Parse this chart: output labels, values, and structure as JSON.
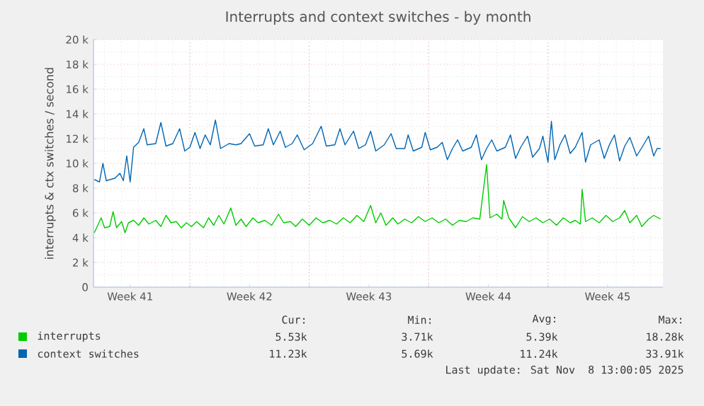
{
  "chart_data": {
    "type": "line",
    "title": "Interrupts and context switches - by month",
    "ylabel": "interrupts & ctx switches / second",
    "xlim": [
      "2025-10-06T08:24",
      "2025-11-08T17:45"
    ],
    "ylim": [
      0,
      20000
    ],
    "xticks": [
      {
        "value": "2025-10-08T12:00",
        "label": "Week 41"
      },
      {
        "value": "2025-10-15T12:00",
        "label": "Week 42"
      },
      {
        "value": "2025-10-22T12:00",
        "label": "Week 43"
      },
      {
        "value": "2025-10-29T12:00",
        "label": "Week 44"
      },
      {
        "value": "2025-11-05T12:00",
        "label": "Week 45"
      },
      {
        "value": "2025-10-12",
        "label": null
      },
      {
        "value": "2025-10-19",
        "label": null
      },
      {
        "value": "2025-10-26",
        "label": null
      },
      {
        "value": "2025-11-02",
        "label": null
      }
    ],
    "yticks": [
      {
        "value": 0,
        "label": "0"
      },
      {
        "value": 2000,
        "label": "2 k"
      },
      {
        "value": 4000,
        "label": "4 k"
      },
      {
        "value": 6000,
        "label": "6 k"
      },
      {
        "value": 8000,
        "label": "8 k"
      },
      {
        "value": 10000,
        "label": "10 k"
      },
      {
        "value": 12000,
        "label": "12 k"
      },
      {
        "value": 14000,
        "label": "14 k"
      },
      {
        "value": 16000,
        "label": "16 k"
      },
      {
        "value": 18000,
        "label": "18 k"
      },
      {
        "value": 20000,
        "label": "20 k"
      }
    ],
    "grid": true,
    "legend": "bottom",
    "annotations": [
      "Cur:",
      "Min:",
      "Avg:",
      "Max:",
      "5.53k",
      "3.71k",
      "5.39k",
      "18.28k",
      "11.23k",
      "5.69k",
      "11.24k",
      "33.91k",
      "Last update: Sat Nov  8 13:00:05 2025"
    ],
    "series": [
      {
        "name": "interrupts",
        "color": "#00cc00",
        "x": [
          "2025-10-06T09:36",
          "2025-10-06T14:24",
          "2025-10-06T19:12",
          "2025-10-07T00:00",
          "2025-10-07T07:12",
          "2025-10-07T12:00",
          "2025-10-07T16:48",
          "2025-10-08T00:00",
          "2025-10-08T04:48",
          "2025-10-08T09:36",
          "2025-10-08T16:48",
          "2025-10-09T00:00",
          "2025-10-09T07:12",
          "2025-10-09T14:24",
          "2025-10-10T00:00",
          "2025-10-10T07:12",
          "2025-10-10T14:24",
          "2025-10-10T21:36",
          "2025-10-11T04:48",
          "2025-10-11T12:00",
          "2025-10-11T19:12",
          "2025-10-12T02:24",
          "2025-10-12T09:36",
          "2025-10-12T19:12",
          "2025-10-13T02:24",
          "2025-10-13T09:36",
          "2025-10-13T16:48",
          "2025-10-14T00:00",
          "2025-10-14T09:36",
          "2025-10-14T16:48",
          "2025-10-15T00:00",
          "2025-10-15T07:12",
          "2025-10-15T16:48",
          "2025-10-16T00:00",
          "2025-10-16T09:36",
          "2025-10-16T19:12",
          "2025-10-17T04:48",
          "2025-10-17T12:00",
          "2025-10-17T21:36",
          "2025-10-18T04:48",
          "2025-10-18T14:24",
          "2025-10-19T00:00",
          "2025-10-19T09:36",
          "2025-10-19T19:12",
          "2025-10-20T04:48",
          "2025-10-20T14:24",
          "2025-10-21T00:00",
          "2025-10-21T09:36",
          "2025-10-21T19:12",
          "2025-10-22T04:48",
          "2025-10-22T14:24",
          "2025-10-22T21:36",
          "2025-10-23T04:48",
          "2025-10-23T12:00",
          "2025-10-23T21:36",
          "2025-10-24T04:48",
          "2025-10-24T14:24",
          "2025-10-25T00:00",
          "2025-10-25T09:36",
          "2025-10-25T19:12",
          "2025-10-26T04:48",
          "2025-10-26T14:24",
          "2025-10-27T00:00",
          "2025-10-27T09:36",
          "2025-10-27T19:12",
          "2025-10-28T04:48",
          "2025-10-28T14:24",
          "2025-10-29T00:00",
          "2025-10-29T09:36",
          "2025-10-29T14:24",
          "2025-10-30T00:00",
          "2025-10-30T07:12",
          "2025-10-30T09:36",
          "2025-10-30T16:48",
          "2025-10-31T02:24",
          "2025-10-31T12:00",
          "2025-10-31T21:36",
          "2025-11-01T07:12",
          "2025-11-01T16:48",
          "2025-11-02T02:24",
          "2025-11-02T12:00",
          "2025-11-02T21:36",
          "2025-11-03T07:12",
          "2025-11-03T14:24",
          "2025-11-03T21:36",
          "2025-11-04T00:00",
          "2025-11-04T04:48",
          "2025-11-04T14:24",
          "2025-11-05T00:00",
          "2025-11-05T09:36",
          "2025-11-05T19:12",
          "2025-11-06T04:48",
          "2025-11-06T12:00",
          "2025-11-06T19:12",
          "2025-11-07T04:48",
          "2025-11-07T12:00",
          "2025-11-07T21:36",
          "2025-11-08T04:48",
          "2025-11-08T14:24"
        ],
        "values": [
          4400,
          5000,
          5600,
          4800,
          4900,
          6100,
          4800,
          5300,
          4400,
          5200,
          5400,
          5000,
          5600,
          5100,
          5400,
          4900,
          5800,
          5200,
          5300,
          4800,
          5200,
          4900,
          5300,
          4800,
          5600,
          5000,
          5800,
          5100,
          6400,
          5000,
          5500,
          4900,
          5600,
          5200,
          5400,
          5000,
          5900,
          5200,
          5300,
          4900,
          5500,
          5000,
          5600,
          5200,
          5400,
          5100,
          5600,
          5200,
          5800,
          5300,
          6600,
          5200,
          6000,
          5000,
          5600,
          5100,
          5500,
          5200,
          5700,
          5300,
          5600,
          5200,
          5500,
          5000,
          5400,
          5300,
          5600,
          5500,
          9900,
          5600,
          5900,
          5500,
          7000,
          5600,
          4800,
          5700,
          5300,
          5600,
          5200,
          5500,
          5000,
          5600,
          5200,
          5400,
          5100,
          7900,
          5300,
          5600,
          5200,
          5800,
          5300,
          5600,
          6200,
          5200,
          5800,
          4900,
          5500,
          5800,
          5500
        ]
      },
      {
        "name": "context switches",
        "color": "#0066b3",
        "x": [
          "2025-10-06T09:36",
          "2025-10-06T16:48",
          "2025-10-06T21:36",
          "2025-10-07T02:24",
          "2025-10-07T14:24",
          "2025-10-07T21:36",
          "2025-10-08T02:24",
          "2025-10-08T07:12",
          "2025-10-08T12:00",
          "2025-10-08T16:48",
          "2025-10-09T00:00",
          "2025-10-09T07:12",
          "2025-10-09T12:00",
          "2025-10-10T00:00",
          "2025-10-10T07:12",
          "2025-10-10T14:24",
          "2025-10-11T00:00",
          "2025-10-11T09:36",
          "2025-10-11T16:48",
          "2025-10-12T00:00",
          "2025-10-12T07:12",
          "2025-10-12T14:24",
          "2025-10-12T21:36",
          "2025-10-13T04:48",
          "2025-10-13T12:00",
          "2025-10-13T19:12",
          "2025-10-14T07:12",
          "2025-10-14T16:48",
          "2025-10-15T00:00",
          "2025-10-15T12:00",
          "2025-10-15T19:12",
          "2025-10-16T07:12",
          "2025-10-16T14:24",
          "2025-10-16T21:36",
          "2025-10-17T07:12",
          "2025-10-17T14:24",
          "2025-10-18T00:00",
          "2025-10-18T07:12",
          "2025-10-18T16:48",
          "2025-10-19T04:48",
          "2025-10-19T16:48",
          "2025-10-20T00:00",
          "2025-10-20T12:00",
          "2025-10-20T19:12",
          "2025-10-21T02:24",
          "2025-10-21T14:24",
          "2025-10-21T21:36",
          "2025-10-22T07:12",
          "2025-10-22T14:24",
          "2025-10-22T21:36",
          "2025-10-23T09:36",
          "2025-10-23T19:12",
          "2025-10-24T02:24",
          "2025-10-24T14:24",
          "2025-10-24T19:12",
          "2025-10-25T02:24",
          "2025-10-25T14:24",
          "2025-10-25T19:12",
          "2025-10-26T02:24",
          "2025-10-26T12:00",
          "2025-10-26T19:12",
          "2025-10-27T02:24",
          "2025-10-27T09:36",
          "2025-10-27T16:48",
          "2025-10-28T00:00",
          "2025-10-28T12:00",
          "2025-10-28T19:12",
          "2025-10-29T02:24",
          "2025-10-29T09:36",
          "2025-10-29T16:48",
          "2025-10-30T00:00",
          "2025-10-30T12:00",
          "2025-10-30T19:12",
          "2025-10-31T02:24",
          "2025-10-31T09:36",
          "2025-10-31T19:12",
          "2025-11-01T02:24",
          "2025-11-01T12:00",
          "2025-11-01T16:48",
          "2025-11-02T00:00",
          "2025-11-02T04:48",
          "2025-11-02T09:36",
          "2025-11-02T16:48",
          "2025-11-03T00:00",
          "2025-11-03T07:12",
          "2025-11-03T14:24",
          "2025-11-04T00:00",
          "2025-11-04T04:48",
          "2025-11-04T12:00",
          "2025-11-05T00:00",
          "2025-11-05T07:12",
          "2025-11-05T14:24",
          "2025-11-05T21:36",
          "2025-11-06T04:48",
          "2025-11-06T12:00",
          "2025-11-06T19:12",
          "2025-11-07T04:48",
          "2025-11-07T14:24",
          "2025-11-07T21:36",
          "2025-11-08T04:48",
          "2025-11-08T09:36",
          "2025-11-08T14:24"
        ],
        "values": [
          8700,
          8500,
          10000,
          8600,
          8800,
          9200,
          8600,
          10600,
          8500,
          11300,
          11700,
          12800,
          11500,
          11600,
          13300,
          11400,
          11600,
          12800,
          11000,
          11300,
          12500,
          11200,
          12300,
          11500,
          13500,
          11200,
          11600,
          11500,
          11600,
          12400,
          11400,
          11500,
          12800,
          11500,
          12600,
          11300,
          11600,
          12300,
          11100,
          11600,
          13000,
          11400,
          11500,
          12800,
          11500,
          12600,
          11200,
          11500,
          12600,
          11000,
          11500,
          12400,
          11200,
          11200,
          12300,
          11000,
          11300,
          12500,
          11100,
          11300,
          11700,
          10300,
          11200,
          11900,
          11000,
          11300,
          12300,
          10300,
          11200,
          11900,
          11000,
          11300,
          12300,
          10400,
          11300,
          12200,
          10500,
          11200,
          12200,
          10100,
          13400,
          10300,
          11500,
          12300,
          10800,
          11300,
          12500,
          10100,
          11500,
          11900,
          10400,
          11500,
          12300,
          10200,
          11400,
          12100,
          10600,
          11500,
          12200,
          10600,
          11200,
          11200
        ]
      }
    ]
  }
}
